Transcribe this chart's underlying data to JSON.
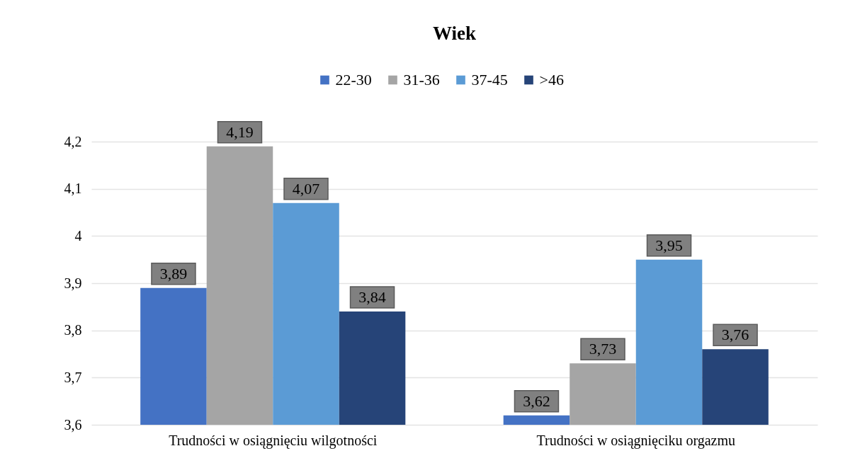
{
  "chart_data": {
    "type": "bar",
    "title": "Wiek",
    "categories": [
      "Trudności w osiągnięciu wilgotności",
      "Trudności w osiągnięciku orgazmu"
    ],
    "series": [
      {
        "name": "22-30",
        "color": "#4472c4",
        "values": [
          3.89,
          3.62
        ],
        "value_labels": [
          "3,89",
          "3,62"
        ]
      },
      {
        "name": "31-36",
        "color": "#a5a5a5",
        "values": [
          4.19,
          3.73
        ],
        "value_labels": [
          "4,19",
          "3,73"
        ]
      },
      {
        "name": "37-45",
        "color": "#5b9bd5",
        "values": [
          4.07,
          3.95
        ],
        "value_labels": [
          "4,07",
          "3,95"
        ]
      },
      {
        "name": ">46",
        "color": "#264478",
        "values": [
          3.84,
          3.76
        ],
        "value_labels": [
          "3,84",
          "3,76"
        ]
      }
    ],
    "ylim": [
      3.6,
      4.2
    ],
    "yticks": [
      {
        "value": 3.6,
        "label": "3,6"
      },
      {
        "value": 3.7,
        "label": "3,7"
      },
      {
        "value": 3.8,
        "label": "3,8"
      },
      {
        "value": 3.9,
        "label": "3,9"
      },
      4,
      {
        "value": 4.1,
        "label": "4,1"
      },
      {
        "value": 4.2,
        "label": "4,2"
      }
    ],
    "grid": "y",
    "legend": "top"
  }
}
